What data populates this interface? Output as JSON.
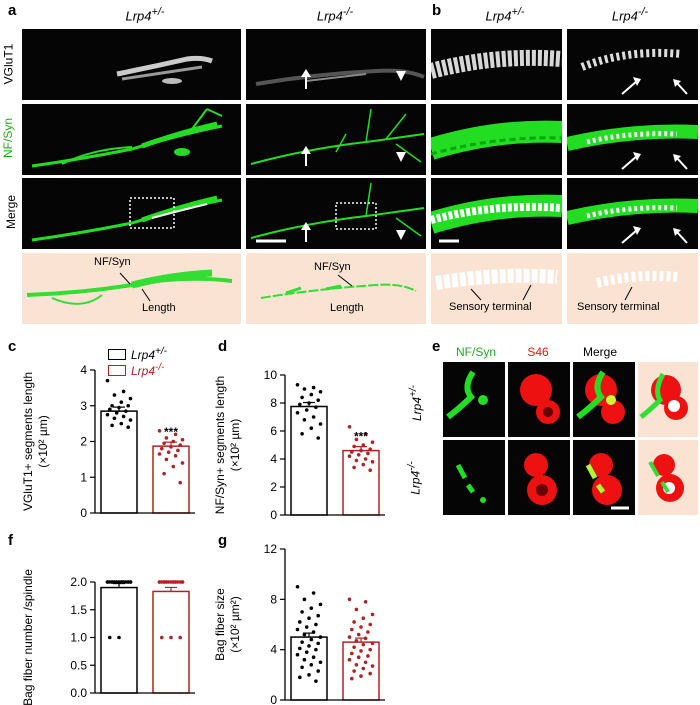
{
  "panel_a": {
    "label": "a",
    "genotypes": [
      "Lrp4+/-",
      "Lrp4-/-"
    ],
    "row_labels": [
      "VGluT1",
      "NF/Syn",
      "Merge"
    ],
    "trace_labels": {
      "top": "NF/Syn",
      "bottom": "Length"
    }
  },
  "panel_b": {
    "label": "b",
    "genotypes": [
      "Lrp4+/-",
      "Lrp4-/-"
    ],
    "trace_label": "Sensory terminal"
  },
  "panel_e": {
    "label": "e",
    "column_labels": [
      "NF/Syn",
      "S46",
      "Merge"
    ],
    "row_labels": [
      "Lrp4+/-",
      "Lrp4-/-"
    ]
  },
  "colors": {
    "green": "#22dd22",
    "red": "#ee1111",
    "het": "#000000",
    "ko": "#b22222",
    "peach": "#fbe3d4"
  },
  "legend": [
    "Lrp4+/-",
    "Lrp4-/-"
  ],
  "chart_data": [
    {
      "panel": "c",
      "type": "bar",
      "categories": [
        "Lrp4+/-",
        "Lrp4-/-"
      ],
      "values": [
        2.85,
        1.87
      ],
      "ylabel": "VGluT1+ segments length (×10² µm)",
      "ylim": [
        0,
        4
      ],
      "yticks": [
        0,
        1,
        2,
        3,
        4
      ],
      "significance": "***",
      "points": [
        [
          3.7,
          3.4,
          3.3,
          3.2,
          3.1,
          3.0,
          3.0,
          2.95,
          2.9,
          2.85,
          2.8,
          2.75,
          2.7,
          2.65,
          2.6,
          2.5,
          2.45,
          2.4
        ],
        [
          2.3,
          2.2,
          2.1,
          2.05,
          2.0,
          1.95,
          1.9,
          1.85,
          1.8,
          1.75,
          1.7,
          1.65,
          1.6,
          1.5,
          1.4,
          1.3,
          1.1,
          0.85
        ]
      ]
    },
    {
      "panel": "d",
      "type": "bar",
      "categories": [
        "Lrp4+/-",
        "Lrp4-/-"
      ],
      "values": [
        7.75,
        4.6
      ],
      "ylabel": "NF/Syn+ segments length (×10² µm)",
      "ylim": [
        0,
        10
      ],
      "yticks": [
        0,
        2,
        4,
        6,
        8,
        10
      ],
      "significance": "***",
      "points": [
        [
          9.3,
          9.1,
          9.0,
          8.8,
          8.6,
          8.4,
          8.2,
          8.0,
          7.9,
          7.7,
          7.5,
          7.3,
          7.0,
          6.8,
          6.5,
          6.2,
          5.8,
          5.5
        ],
        [
          6.3,
          5.8,
          5.4,
          5.2,
          5.0,
          4.9,
          4.7,
          4.6,
          4.5,
          4.4,
          4.3,
          4.2,
          4.0,
          3.9,
          3.8,
          3.6,
          3.4,
          3.2
        ]
      ]
    },
    {
      "panel": "f",
      "type": "bar",
      "categories": [
        "Lrp4+/-",
        "Lrp4-/-"
      ],
      "values": [
        1.9,
        1.83
      ],
      "ylabel": "Bag fiber number /spindle",
      "ylim": [
        0,
        2.0
      ],
      "yticks": [
        0,
        0.5,
        1.0,
        1.5,
        2.0
      ],
      "points": [
        [
          2,
          2,
          2,
          2,
          2,
          2,
          2,
          2,
          2,
          2,
          2,
          2,
          2,
          2,
          2,
          2,
          2,
          2,
          1,
          1
        ],
        [
          2,
          2,
          2,
          2,
          2,
          2,
          2,
          2,
          2,
          2,
          2,
          2,
          2,
          2,
          2,
          2,
          2,
          1,
          1,
          1
        ]
      ]
    },
    {
      "panel": "g",
      "type": "bar",
      "categories": [
        "Lrp4+/-",
        "Lrp4-/-"
      ],
      "values": [
        5.0,
        4.6
      ],
      "ylabel": "Bag fiber size (×10² µm²)",
      "ylim": [
        0,
        12
      ],
      "yticks": [
        0,
        4,
        8,
        12
      ],
      "points": [
        [
          9.0,
          8.5,
          8.0,
          7.6,
          7.3,
          7.0,
          6.7,
          6.5,
          6.2,
          6.0,
          5.8,
          5.6,
          5.4,
          5.2,
          5.0,
          4.8,
          4.6,
          4.5,
          4.3,
          4.1,
          4.0,
          3.8,
          3.6,
          3.4,
          3.2,
          3.0,
          2.8,
          2.6,
          2.3,
          2.0,
          1.8,
          1.5
        ],
        [
          8.0,
          7.8,
          7.2,
          6.8,
          6.5,
          6.2,
          6.0,
          5.8,
          5.6,
          5.4,
          5.2,
          5.0,
          4.9,
          4.7,
          4.5,
          4.4,
          4.2,
          4.0,
          3.9,
          3.7,
          3.5,
          3.4,
          3.2,
          3.0,
          2.8,
          2.7,
          2.5,
          2.3,
          2.1,
          1.9,
          1.7
        ]
      ]
    }
  ]
}
